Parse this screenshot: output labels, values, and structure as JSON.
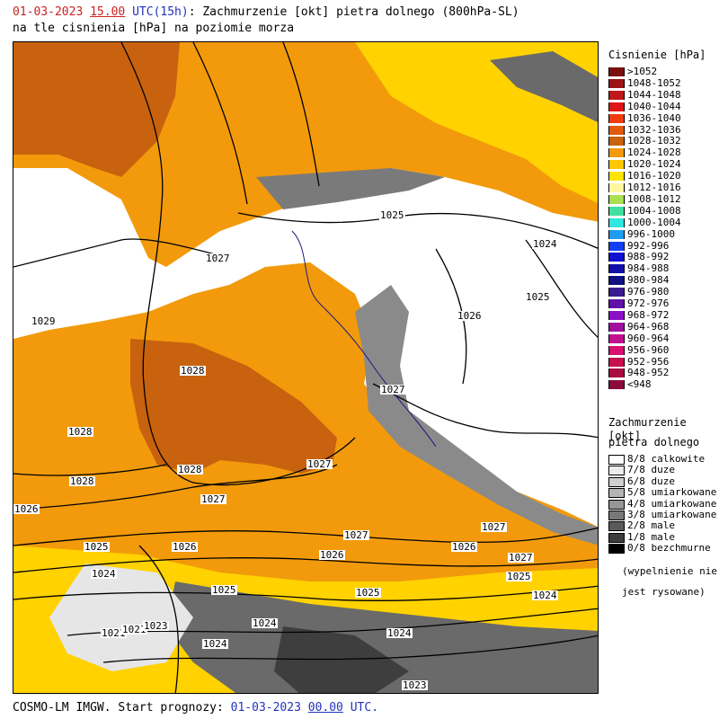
{
  "header": {
    "date": "01-03-2023",
    "hour": "15.00",
    "utc": "UTC",
    "lead": "(15h)",
    "title_rest": ": Zachmurzenie [okt] pietra dolnego (800hPa-SL)",
    "line2": "na tle cisnienia [hPa] na poziomie morza"
  },
  "colors": {
    "date": "#cc2222",
    "utc": "#2233bb"
  },
  "map": {
    "isobar_labels": [
      "1025",
      "1024",
      "1027",
      "1025",
      "1026",
      "1029",
      "1028",
      "1027",
      "1028",
      "1028",
      "1027",
      "1028",
      "1027",
      "1026",
      "1027",
      "1027",
      "1025",
      "1026",
      "1026",
      "1026",
      "1027",
      "1024",
      "1025",
      "1025",
      "1025",
      "1024",
      "1024",
      "1021",
      "1021",
      "1023",
      "1024",
      "1024",
      "1023"
    ]
  },
  "legend_pressure": {
    "title": "Cisnienie [hPa]",
    "items": [
      {
        "label": ">1052",
        "color": "#7a1010"
      },
      {
        "label": "1048-1052",
        "color": "#9c1414"
      },
      {
        "label": "1044-1048",
        "color": "#c01818"
      },
      {
        "label": "1040-1044",
        "color": "#e01515"
      },
      {
        "label": "1036-1040",
        "color": "#f03c10"
      },
      {
        "label": "1032-1036",
        "color": "#e05a0c"
      },
      {
        "label": "1028-1032",
        "color": "#c8620e"
      },
      {
        "label": "1024-1028",
        "color": "#f29a0c"
      },
      {
        "label": "1020-1024",
        "color": "#ffc800"
      },
      {
        "label": "1016-1020",
        "color": "#ffe400"
      },
      {
        "label": "1012-1016",
        "color": "#fff6a0"
      },
      {
        "label": "1008-1012",
        "color": "#a8e050"
      },
      {
        "label": "1004-1008",
        "color": "#40e0a0"
      },
      {
        "label": "1000-1004",
        "color": "#30e8e0"
      },
      {
        "label": "996-1000",
        "color": "#1e9cf0"
      },
      {
        "label": "992-996",
        "color": "#1040f0"
      },
      {
        "label": "988-992",
        "color": "#1010d0"
      },
      {
        "label": "984-988",
        "color": "#1010a8"
      },
      {
        "label": "980-984",
        "color": "#101080"
      },
      {
        "label": "976-980",
        "color": "#3a1a90"
      },
      {
        "label": "972-976",
        "color": "#6010a8"
      },
      {
        "label": "968-972",
        "color": "#8a10c8"
      },
      {
        "label": "964-968",
        "color": "#a010a0"
      },
      {
        "label": "960-964",
        "color": "#c01090"
      },
      {
        "label": "956-960",
        "color": "#d81070"
      },
      {
        "label": "952-956",
        "color": "#c81050"
      },
      {
        "label": "948-952",
        "color": "#a80c40"
      },
      {
        "label": "<948",
        "color": "#8a0a3a"
      }
    ]
  },
  "legend_cloud": {
    "title_line1": "Zachmurzenie [okt]",
    "title_line2": "pietra dolnego",
    "items": [
      {
        "label": "8/8 calkowite",
        "color": "#ffffff"
      },
      {
        "label": "7/8 duze",
        "color": "#ececec"
      },
      {
        "label": "6/8 duze",
        "color": "#d0d0d0"
      },
      {
        "label": "5/8 umiarkowane",
        "color": "#b4b4b4"
      },
      {
        "label": "4/8 umiarkowane",
        "color": "#969696"
      },
      {
        "label": "3/8 umiarkowane",
        "color": "#787878"
      },
      {
        "label": "2/8 male",
        "color": "#5a5a5a"
      },
      {
        "label": "1/8 male",
        "color": "#3c3c3c"
      },
      {
        "label": "0/8 bezchmurne",
        "color": "#000000"
      }
    ],
    "note_line1": "(wypelnienie nie",
    "note_line2": "jest rysowane)"
  },
  "footer": {
    "model": "COSMO-LM IMGW. Start prognozy:",
    "date": "01-03-2023",
    "hour": "00.00",
    "utc": "UTC."
  }
}
